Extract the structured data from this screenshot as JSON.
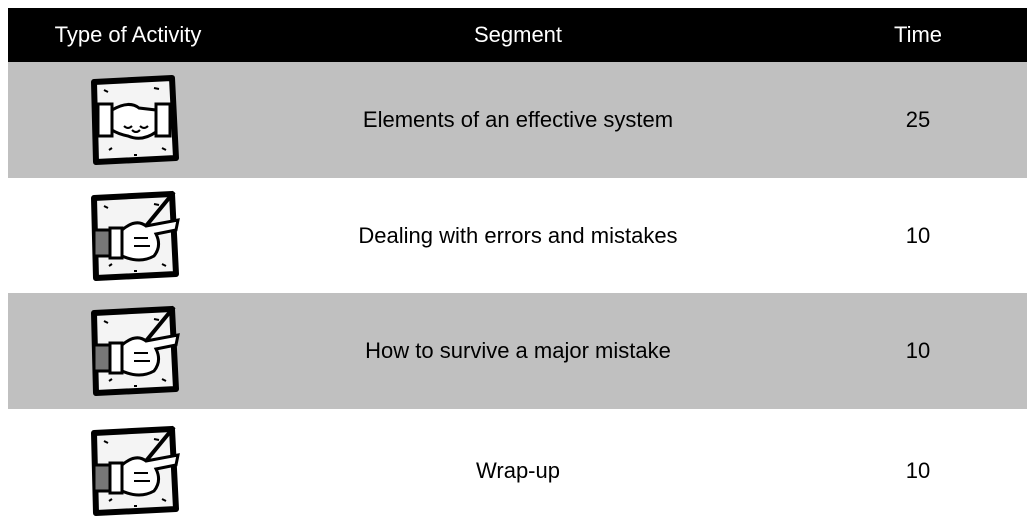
{
  "table": {
    "header": [
      "Type of Activity",
      "Segment",
      "Time"
    ],
    "rows": [
      [
        "Elements of an effective system",
        25
      ],
      [
        "Dealing with errors and mistakes",
        10
      ],
      [
        "How to survive a major mistake",
        10
      ],
      [
        "Wrap-up",
        10
      ]
    ]
  }
}
